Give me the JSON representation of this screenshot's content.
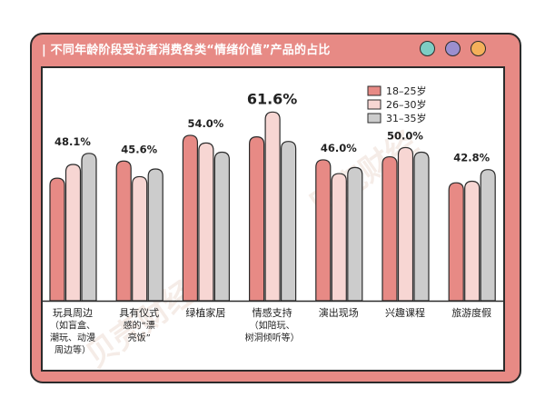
{
  "title": "| 不同年龄阶段受访者消费各类“情绪价值”产品的占比",
  "colors": {
    "frame": "#e78a85",
    "dot_teal": "#7ecdc4",
    "dot_purple": "#9b8fcf",
    "dot_orange": "#f4b05a",
    "series": [
      "#e78a85",
      "#f7d6d3",
      "#cccccc"
    ]
  },
  "watermark": "贝壳财经",
  "chart_data": {
    "type": "bar",
    "title": "不同年龄阶段受访者消费各类“情绪价值”产品的占比",
    "categories": [
      {
        "lines": [
          "玩具周边",
          "（如盲盒、",
          "潮玩、动漫",
          "周边等）"
        ]
      },
      {
        "lines": [
          "具有仪式",
          "感的“漂",
          "亮饭”"
        ]
      },
      {
        "lines": [
          "绿植家居"
        ]
      },
      {
        "lines": [
          "情感支持",
          "（如陪玩、",
          "树洞倾听等）"
        ]
      },
      {
        "lines": [
          "演出现场"
        ]
      },
      {
        "lines": [
          "兴趣课程"
        ]
      },
      {
        "lines": [
          "旅游度假"
        ]
      }
    ],
    "series": [
      {
        "name": "18–25岁",
        "values": [
          40.0,
          45.6,
          54.0,
          53.5,
          46.0,
          47.0,
          38.5
        ]
      },
      {
        "name": "26–30岁",
        "values": [
          44.5,
          40.5,
          51.5,
          61.6,
          41.5,
          50.0,
          39.0
        ]
      },
      {
        "name": "31–35岁",
        "values": [
          48.1,
          43.0,
          48.5,
          52.0,
          43.5,
          48.5,
          42.8
        ]
      }
    ],
    "annotations": [
      {
        "category": 0,
        "text": "48.1%"
      },
      {
        "category": 1,
        "text": "45.6%"
      },
      {
        "category": 2,
        "text": "54.0%"
      },
      {
        "category": 3,
        "text": "61.6%"
      },
      {
        "category": 4,
        "text": "46.0%"
      },
      {
        "category": 5,
        "text": "50.0%"
      },
      {
        "category": 6,
        "text": "42.8%"
      }
    ],
    "ylim": [
      0,
      70
    ],
    "legend_position": "top-right",
    "grid": false
  }
}
